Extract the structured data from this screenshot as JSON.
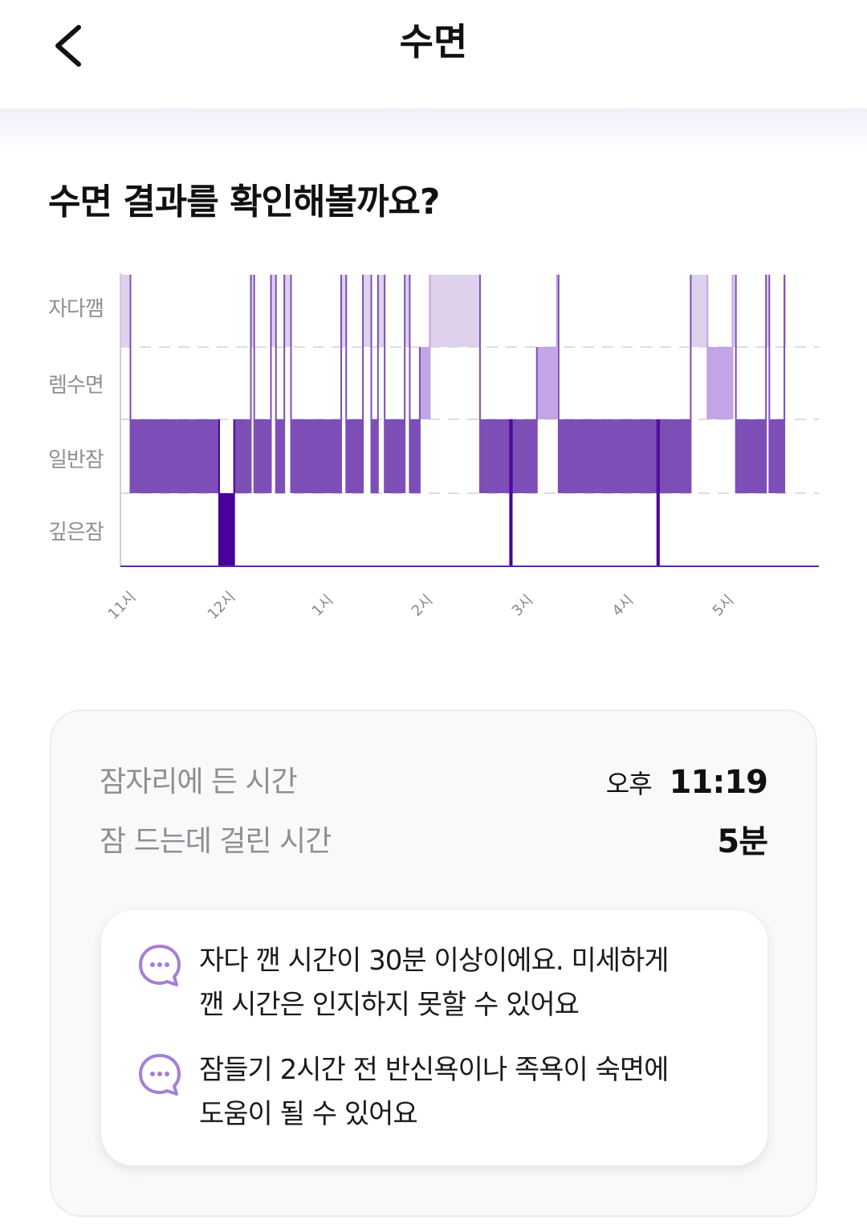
{
  "header": {
    "title": "수면",
    "back_icon": "chevron-left-icon"
  },
  "section": {
    "heading": "수면 결과를 확인해볼까요?"
  },
  "chart_data": {
    "type": "bar",
    "orientation": "timeline",
    "stages": [
      "자다깸",
      "렘수면",
      "일반잠",
      "깊은잠"
    ],
    "x_ticks": [
      "11시",
      "12시",
      "1시",
      "2시",
      "3시",
      "4시",
      "5시"
    ],
    "x_range": [
      "23:00",
      "06:00"
    ],
    "colors": {
      "awake": "#ddd1ec",
      "rem": "#c2a5e4",
      "light": "#7d4fb6",
      "deep": "#47009a"
    },
    "segments": [
      {
        "stage": "자다깸",
        "start": "23:00",
        "end": "23:06"
      },
      {
        "stage": "일반잠",
        "start": "23:06",
        "end": "23:59"
      },
      {
        "stage": "깊은잠",
        "start": "23:59",
        "end": "00:08"
      },
      {
        "stage": "일반잠",
        "start": "00:08",
        "end": "00:18"
      },
      {
        "stage": "자다깸",
        "start": "00:18",
        "end": "00:20"
      },
      {
        "stage": "일반잠",
        "start": "00:20",
        "end": "00:30"
      },
      {
        "stage": "자다깸",
        "start": "00:30",
        "end": "00:33"
      },
      {
        "stage": "일반잠",
        "start": "00:33",
        "end": "00:38"
      },
      {
        "stage": "자다깸",
        "start": "00:38",
        "end": "00:42"
      },
      {
        "stage": "일반잠",
        "start": "00:42",
        "end": "01:12"
      },
      {
        "stage": "자다깸",
        "start": "01:12",
        "end": "01:15"
      },
      {
        "stage": "일반잠",
        "start": "01:15",
        "end": "01:25"
      },
      {
        "stage": "자다깸",
        "start": "01:25",
        "end": "01:30"
      },
      {
        "stage": "일반잠",
        "start": "01:30",
        "end": "01:34"
      },
      {
        "stage": "자다깸",
        "start": "01:34",
        "end": "01:38"
      },
      {
        "stage": "일반잠",
        "start": "01:38",
        "end": "01:50"
      },
      {
        "stage": "자다깸",
        "start": "01:50",
        "end": "01:53"
      },
      {
        "stage": "일반잠",
        "start": "01:53",
        "end": "01:59"
      },
      {
        "stage": "렘수면",
        "start": "01:59",
        "end": "02:05"
      },
      {
        "stage": "자다깸",
        "start": "02:05",
        "end": "02:35"
      },
      {
        "stage": "일반잠",
        "start": "02:35",
        "end": "02:53"
      },
      {
        "stage": "깊은잠",
        "start": "02:53",
        "end": "02:54"
      },
      {
        "stage": "일반잠",
        "start": "02:54",
        "end": "03:09"
      },
      {
        "stage": "렘수면",
        "start": "03:09",
        "end": "03:21"
      },
      {
        "stage": "자다깸",
        "start": "03:21",
        "end": "03:22"
      },
      {
        "stage": "일반잠",
        "start": "03:22",
        "end": "04:21"
      },
      {
        "stage": "깊은잠",
        "start": "04:21",
        "end": "04:22"
      },
      {
        "stage": "일반잠",
        "start": "04:22",
        "end": "04:41"
      },
      {
        "stage": "자다깸",
        "start": "04:41",
        "end": "04:51"
      },
      {
        "stage": "렘수면",
        "start": "04:51",
        "end": "05:06"
      },
      {
        "stage": "자다깸",
        "start": "05:06",
        "end": "05:08"
      },
      {
        "stage": "일반잠",
        "start": "05:08",
        "end": "05:26"
      },
      {
        "stage": "자다깸",
        "start": "05:26",
        "end": "05:28"
      },
      {
        "stage": "일반잠",
        "start": "05:28",
        "end": "05:37"
      },
      {
        "stage": "자다깸",
        "start": "05:37",
        "end": "05:38"
      }
    ]
  },
  "summary": {
    "bedtime_label": "잠자리에 든 시간",
    "bedtime_prefix": "오후",
    "bedtime_value": "11:19",
    "latency_label": "잠 드는데 걸린 시간",
    "latency_value": "5분"
  },
  "tips": [
    {
      "icon": "chat-bubble-icon",
      "text_line1": "자다 깬 시간이 30분 이상이에요. 미세하게",
      "text_line2": "깬 시간은 인지하지 못할 수 있어요"
    },
    {
      "icon": "chat-bubble-icon",
      "text_line1": "잠들기 2시간 전 반신욕이나 족욕이 숙면에",
      "text_line2": "도움이 될 수 있어요"
    }
  ]
}
